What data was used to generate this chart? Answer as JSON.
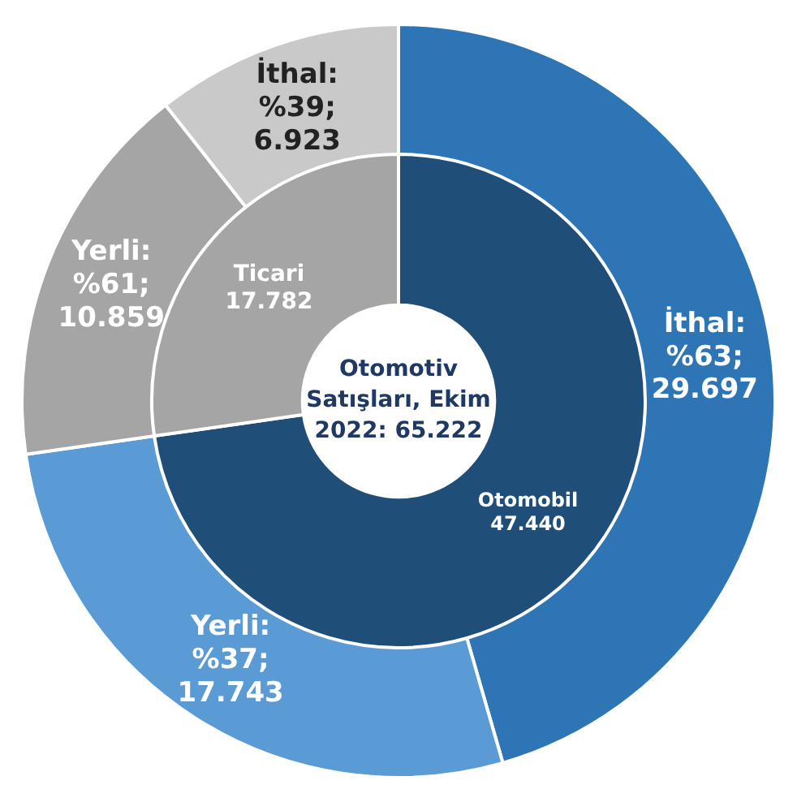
{
  "chart_data": [
    {
      "type": "donut",
      "categories": [
        "İthal",
        "Yerli",
        "Yerli",
        "İthal"
      ],
      "values": [
        29697,
        17743,
        10859,
        6923
      ],
      "colors": [
        "#2e75b6",
        "#5b9bd5",
        "#a5a5a5",
        "#c9c9c9"
      ],
      "value_labels": [
        ":\n%63;\n29.697",
        ":\n%37;\n17.743",
        ":\n%61;\n10.859",
        ":\n%39;\n6.923"
      ]
    },
    {
      "type": "donut",
      "title": "Otomotiv\nSatışları, Ekim\n2022: 65.222",
      "categories": [
        "Otomobil",
        "Ticari"
      ],
      "values": [
        47440,
        17782
      ],
      "colors": [
        "#1f4e79",
        "#a5a5a5"
      ],
      "value_labels": [
        "47.440",
        "17.782"
      ]
    }
  ]
}
